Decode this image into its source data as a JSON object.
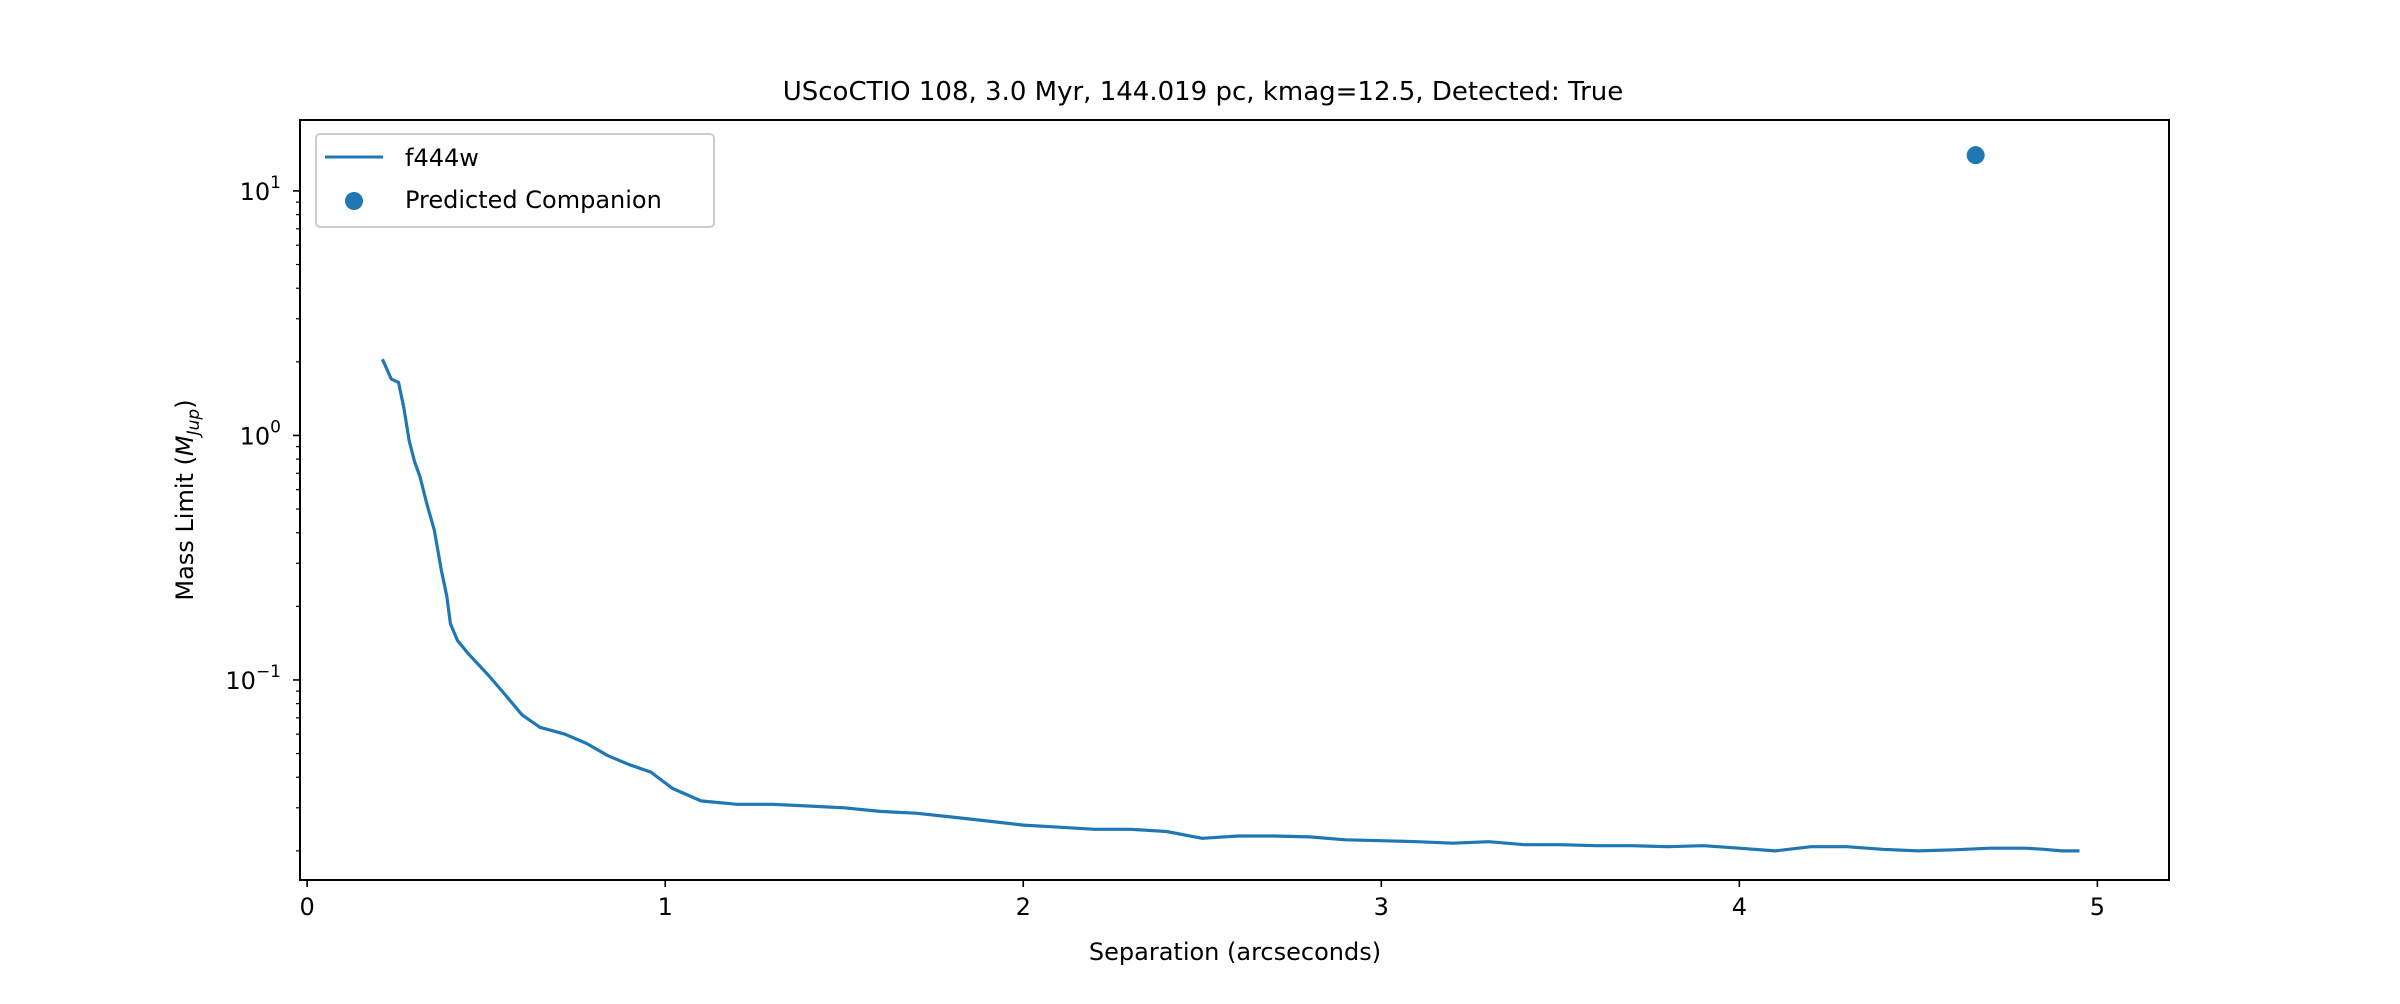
{
  "chart_data": {
    "type": "line",
    "title": "UScoCTIO 108, 3.0 Myr, 144.019 pc, kmag=12.5, Detected: True",
    "xlabel": "Separation (arcseconds)",
    "ylabel_prefix": "Mass Limit (",
    "ylabel_math": "M",
    "ylabel_sub": "Jup",
    "ylabel_suffix": ")",
    "xlim": [
      -0.02,
      5.2
    ],
    "ylim": [
      0.0152,
      19.5
    ],
    "yscale": "log",
    "grid": false,
    "legend_position": "upper-left",
    "x_ticks": [
      {
        "value": 0,
        "label": "0"
      },
      {
        "value": 1,
        "label": "1"
      },
      {
        "value": 2,
        "label": "2"
      },
      {
        "value": 3,
        "label": "3"
      },
      {
        "value": 4,
        "label": "4"
      },
      {
        "value": 5,
        "label": "5"
      }
    ],
    "y_ticks": [
      {
        "value": 0.1,
        "base": "10",
        "exp": "−1"
      },
      {
        "value": 1,
        "base": "10",
        "exp": "0"
      },
      {
        "value": 10,
        "base": "10",
        "exp": "1"
      }
    ],
    "series": [
      {
        "name": "f444w",
        "kind": "line",
        "color": "#1f77b4",
        "x": [
          0.21,
          0.235,
          0.255,
          0.27,
          0.285,
          0.3,
          0.315,
          0.335,
          0.355,
          0.375,
          0.39,
          0.4,
          0.42,
          0.45,
          0.48,
          0.51,
          0.55,
          0.6,
          0.65,
          0.72,
          0.78,
          0.84,
          0.9,
          0.96,
          1.02,
          1.1,
          1.2,
          1.3,
          1.4,
          1.5,
          1.6,
          1.7,
          1.8,
          1.9,
          2.0,
          2.1,
          2.2,
          2.3,
          2.4,
          2.5,
          2.6,
          2.7,
          2.8,
          2.9,
          3.0,
          3.1,
          3.2,
          3.3,
          3.4,
          3.5,
          3.6,
          3.7,
          3.8,
          3.9,
          4.0,
          4.1,
          4.2,
          4.3,
          4.4,
          4.5,
          4.6,
          4.7,
          4.8,
          4.85,
          4.9,
          4.95
        ],
        "y": [
          2.05,
          1.7,
          1.65,
          1.3,
          0.95,
          0.78,
          0.68,
          0.52,
          0.41,
          0.28,
          0.22,
          0.17,
          0.145,
          0.128,
          0.115,
          0.103,
          0.088,
          0.072,
          0.064,
          0.06,
          0.055,
          0.049,
          0.045,
          0.042,
          0.036,
          0.032,
          0.031,
          0.031,
          0.0305,
          0.03,
          0.029,
          0.0285,
          0.0275,
          0.0265,
          0.0255,
          0.025,
          0.0245,
          0.0245,
          0.024,
          0.0225,
          0.023,
          0.023,
          0.0228,
          0.0222,
          0.022,
          0.0218,
          0.0215,
          0.0218,
          0.0212,
          0.0212,
          0.021,
          0.021,
          0.0208,
          0.021,
          0.0205,
          0.02,
          0.0208,
          0.0208,
          0.0203,
          0.02,
          0.0202,
          0.0205,
          0.0205,
          0.0203,
          0.02,
          0.02
        ]
      },
      {
        "name": "Predicted Companion",
        "kind": "scatter",
        "color": "#1f77b4",
        "x": [
          4.66
        ],
        "y": [
          14.0
        ]
      }
    ]
  }
}
